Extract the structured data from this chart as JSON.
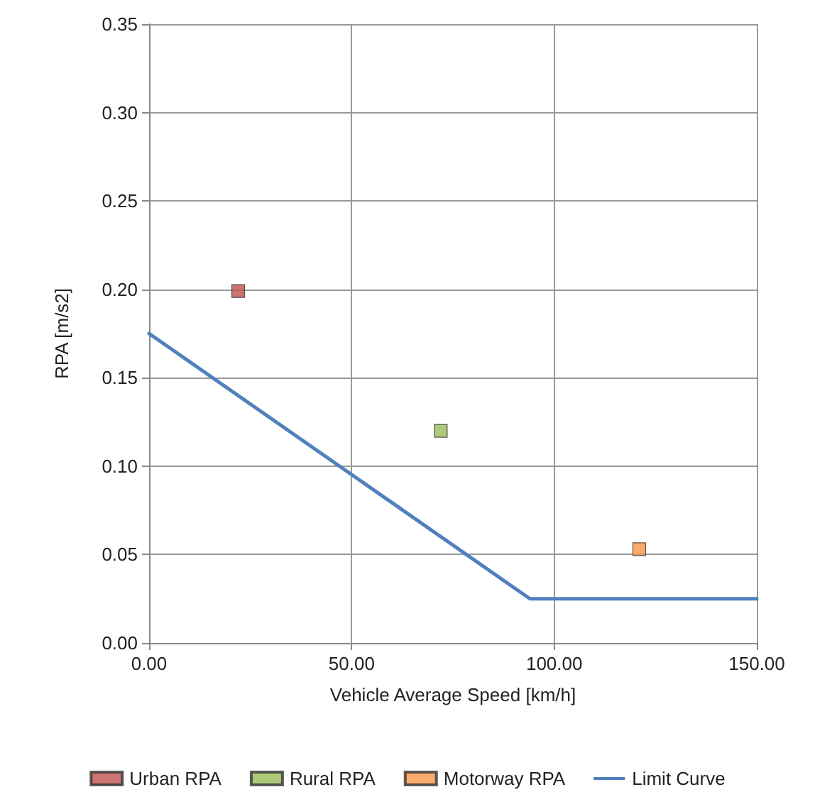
{
  "chart_data": {
    "type": "scatter",
    "xlabel": "Vehicle Average Speed [km/h]",
    "ylabel": "RPA [m/s2]",
    "series": [
      {
        "name": "Urban RPA",
        "color": "#c0504d",
        "x": [
          22
        ],
        "values": [
          0.199
        ],
        "marker": "square"
      },
      {
        "name": "Rural RPA",
        "color": "#9bbb59",
        "x": [
          72
        ],
        "values": [
          0.12
        ],
        "marker": "square"
      },
      {
        "name": "Motorway RPA",
        "color": "#f79646",
        "x": [
          121
        ],
        "values": [
          0.053
        ],
        "marker": "square"
      },
      {
        "name": "Limit Curve",
        "type": "line",
        "color": "#4f81bd",
        "x": [
          0,
          94,
          150
        ],
        "values": [
          0.175,
          0.025,
          0.025
        ],
        "marker": "none",
        "line_style": "solid"
      }
    ],
    "xlim": [
      0,
      150
    ],
    "xticks": [
      {
        "value": 0,
        "label": "0.00"
      },
      {
        "value": 50,
        "label": "50.00"
      },
      {
        "value": 100,
        "label": "100.00"
      },
      {
        "value": 150,
        "label": "150.00"
      }
    ],
    "ylim": [
      0,
      0.35
    ],
    "yticks": [
      {
        "value": 0,
        "label": "0.00"
      },
      {
        "value": 0.05,
        "label": "0.05"
      },
      {
        "value": 0.1,
        "label": "0.10"
      },
      {
        "value": 0.15,
        "label": "0.15"
      },
      {
        "value": 0.2,
        "label": "0.20"
      },
      {
        "value": 0.25,
        "label": "0.25"
      },
      {
        "value": 0.3,
        "label": "0.30"
      },
      {
        "value": 0.35,
        "label": "0.35"
      }
    ],
    "grid": true,
    "legend": "bottom"
  }
}
